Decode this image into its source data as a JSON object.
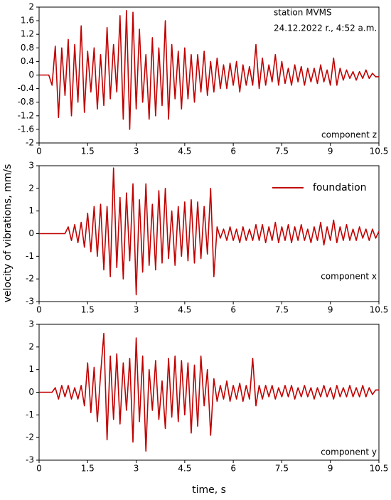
{
  "chart_data": [
    {
      "type": "line",
      "annotations": [
        "station MVMS",
        "24.12.2022 r., 4:52 a.m.",
        "component z"
      ],
      "x": [
        0,
        0.1,
        0.2,
        0.3,
        0.4,
        0.5,
        0.6,
        0.7,
        0.8,
        0.9,
        1,
        1.1,
        1.2,
        1.3,
        1.4,
        1.5,
        1.6,
        1.7,
        1.8,
        1.9,
        2,
        2.1,
        2.2,
        2.3,
        2.4,
        2.5,
        2.6,
        2.7,
        2.8,
        2.9,
        3,
        3.1,
        3.2,
        3.3,
        3.4,
        3.5,
        3.6,
        3.7,
        3.8,
        3.9,
        4,
        4.1,
        4.2,
        4.3,
        4.4,
        4.5,
        4.6,
        4.7,
        4.8,
        4.9,
        5,
        5.1,
        5.2,
        5.3,
        5.4,
        5.5,
        5.6,
        5.7,
        5.8,
        5.9,
        6,
        6.1,
        6.2,
        6.3,
        6.4,
        6.5,
        6.6,
        6.7,
        6.8,
        6.9,
        7,
        7.1,
        7.2,
        7.3,
        7.4,
        7.5,
        7.6,
        7.7,
        7.8,
        7.9,
        8,
        8.1,
        8.2,
        8.3,
        8.4,
        8.5,
        8.6,
        8.7,
        8.8,
        8.9,
        9,
        9.1,
        9.2,
        9.3,
        9.4,
        9.5,
        9.6,
        9.7,
        9.8,
        9.9,
        10,
        10.1,
        10.2,
        10.3,
        10.4,
        10.5
      ],
      "series": [
        {
          "color": "#c00000",
          "values": [
            0,
            0,
            0,
            0,
            -0.3,
            0.85,
            -1.25,
            0.8,
            -0.6,
            1.05,
            -1.2,
            0.9,
            -0.8,
            1.45,
            -1.1,
            0.7,
            -0.5,
            0.8,
            -1.0,
            0.6,
            -0.9,
            1.4,
            -0.7,
            0.9,
            -0.5,
            1.75,
            -1.3,
            1.9,
            -1.6,
            1.85,
            -1.0,
            1.35,
            -0.8,
            0.6,
            -1.3,
            1.1,
            -1.2,
            0.8,
            -0.9,
            1.6,
            -1.3,
            0.9,
            -0.7,
            0.7,
            -1.0,
            0.8,
            -0.7,
            0.6,
            -0.8,
            0.6,
            -0.5,
            0.7,
            -0.6,
            0.4,
            -0.5,
            0.5,
            -0.4,
            0.3,
            -0.4,
            0.35,
            -0.3,
            0.4,
            -0.5,
            0.3,
            -0.3,
            0.25,
            -0.3,
            0.9,
            -0.4,
            0.5,
            -0.3,
            0.3,
            -0.2,
            0.6,
            -0.3,
            0.4,
            -0.25,
            0.2,
            -0.3,
            0.3,
            -0.2,
            0.25,
            -0.3,
            0.2,
            -0.2,
            0.2,
            -0.25,
            0.3,
            -0.2,
            0.15,
            -0.3,
            0.5,
            -0.3,
            0.2,
            -0.15,
            0.15,
            -0.1,
            0.1,
            -0.15,
            0.1,
            -0.1,
            0.15,
            -0.1,
            0.05,
            -0.05,
            -0.05
          ]
        }
      ],
      "xlim": [
        0,
        10.5
      ],
      "xticks": [
        0,
        1.5,
        3,
        4.5,
        6,
        7.5,
        9,
        10.5
      ],
      "ylim": [
        -2,
        2
      ],
      "yticks": [
        2,
        1.6,
        1.2,
        0.8,
        0.4,
        0,
        -0.4,
        -0.8,
        -1.2,
        -1.6,
        -2
      ]
    },
    {
      "type": "line",
      "ylabel": "velocity of vibrations, mm/s",
      "annotations": [
        "component x"
      ],
      "x": [
        0,
        0.1,
        0.2,
        0.3,
        0.4,
        0.5,
        0.6,
        0.7,
        0.8,
        0.9,
        1,
        1.1,
        1.2,
        1.3,
        1.4,
        1.5,
        1.6,
        1.7,
        1.8,
        1.9,
        2,
        2.1,
        2.2,
        2.3,
        2.4,
        2.5,
        2.6,
        2.7,
        2.8,
        2.9,
        3,
        3.1,
        3.2,
        3.3,
        3.4,
        3.5,
        3.6,
        3.7,
        3.8,
        3.9,
        4,
        4.1,
        4.2,
        4.3,
        4.4,
        4.5,
        4.6,
        4.7,
        4.8,
        4.9,
        5,
        5.1,
        5.2,
        5.3,
        5.4,
        5.5,
        5.6,
        5.7,
        5.8,
        5.9,
        6,
        6.1,
        6.2,
        6.3,
        6.4,
        6.5,
        6.6,
        6.7,
        6.8,
        6.9,
        7,
        7.1,
        7.2,
        7.3,
        7.4,
        7.5,
        7.6,
        7.7,
        7.8,
        7.9,
        8,
        8.1,
        8.2,
        8.3,
        8.4,
        8.5,
        8.6,
        8.7,
        8.8,
        8.9,
        9,
        9.1,
        9.2,
        9.3,
        9.4,
        9.5,
        9.6,
        9.7,
        9.8,
        9.9,
        10,
        10.1,
        10.2,
        10.3,
        10.4,
        10.5
      ],
      "series": [
        {
          "name": "foundation",
          "color": "#c00000",
          "values": [
            0,
            0,
            0,
            0,
            0,
            0,
            0,
            0,
            0,
            0.3,
            -0.3,
            0.4,
            -0.4,
            0.5,
            -0.6,
            0.9,
            -0.8,
            1.2,
            -1.0,
            1.3,
            -1.6,
            1.2,
            -1.9,
            2.9,
            -1.5,
            1.6,
            -2.0,
            1.8,
            -1.2,
            2.2,
            -2.7,
            1.5,
            -1.7,
            2.2,
            -1.4,
            1.3,
            -1.6,
            1.9,
            -1.3,
            2.0,
            -1.1,
            1.0,
            -1.4,
            1.2,
            -1.0,
            1.4,
            -1.2,
            1.5,
            -1.3,
            1.4,
            -1.1,
            1.2,
            -0.9,
            2.0,
            -1.9,
            0.3,
            -0.2,
            0.2,
            -0.3,
            0.3,
            -0.3,
            0.2,
            -0.4,
            0.3,
            -0.3,
            0.2,
            -0.3,
            0.4,
            -0.3,
            0.4,
            -0.4,
            0.3,
            -0.3,
            0.5,
            -0.4,
            0.3,
            -0.3,
            0.4,
            -0.4,
            0.3,
            -0.3,
            0.4,
            -0.3,
            0.2,
            -0.4,
            0.3,
            -0.3,
            0.5,
            -0.5,
            0.3,
            -0.3,
            0.6,
            -0.4,
            0.3,
            -0.3,
            0.4,
            -0.3,
            0.2,
            -0.3,
            0.3,
            -0.2,
            0.2,
            -0.3,
            0.2,
            -0.2,
            0.1
          ]
        }
      ],
      "legend": "upper right",
      "xlim": [
        0,
        10.5
      ],
      "xticks": [
        0,
        1.5,
        3,
        4.5,
        6,
        7.5,
        9,
        10.5
      ],
      "ylim": [
        -3,
        3
      ],
      "yticks": [
        3,
        2,
        1,
        0,
        -1,
        -2,
        -3
      ]
    },
    {
      "type": "line",
      "xlabel": "time, s",
      "annotations": [
        "component y"
      ],
      "x": [
        0,
        0.1,
        0.2,
        0.3,
        0.4,
        0.5,
        0.6,
        0.7,
        0.8,
        0.9,
        1,
        1.1,
        1.2,
        1.3,
        1.4,
        1.5,
        1.6,
        1.7,
        1.8,
        1.9,
        2,
        2.1,
        2.2,
        2.3,
        2.4,
        2.5,
        2.6,
        2.7,
        2.8,
        2.9,
        3,
        3.1,
        3.2,
        3.3,
        3.4,
        3.5,
        3.6,
        3.7,
        3.8,
        3.9,
        4,
        4.1,
        4.2,
        4.3,
        4.4,
        4.5,
        4.6,
        4.7,
        4.8,
        4.9,
        5,
        5.1,
        5.2,
        5.3,
        5.4,
        5.5,
        5.6,
        5.7,
        5.8,
        5.9,
        6,
        6.1,
        6.2,
        6.3,
        6.4,
        6.5,
        6.6,
        6.7,
        6.8,
        6.9,
        7,
        7.1,
        7.2,
        7.3,
        7.4,
        7.5,
        7.6,
        7.7,
        7.8,
        7.9,
        8,
        8.1,
        8.2,
        8.3,
        8.4,
        8.5,
        8.6,
        8.7,
        8.8,
        8.9,
        9,
        9.1,
        9.2,
        9.3,
        9.4,
        9.5,
        9.6,
        9.7,
        9.8,
        9.9,
        10,
        10.1,
        10.2,
        10.3,
        10.4,
        10.5
      ],
      "series": [
        {
          "color": "#c00000",
          "values": [
            0,
            0,
            0,
            0,
            0,
            0.2,
            -0.3,
            0.3,
            -0.2,
            0.3,
            -0.3,
            0.2,
            -0.3,
            0.3,
            -0.6,
            1.3,
            -0.9,
            1.1,
            -1.3,
            0.8,
            2.6,
            -2.1,
            1.6,
            -1.2,
            1.7,
            -1.4,
            1.3,
            -0.8,
            1.5,
            -2.2,
            2.4,
            -1.3,
            1.6,
            -2.6,
            1.0,
            -0.8,
            1.4,
            -1.2,
            0.5,
            -1.6,
            1.5,
            -1.1,
            1.6,
            -1.3,
            1.4,
            -1.0,
            1.3,
            -1.8,
            1.2,
            -1.5,
            1.6,
            -0.6,
            1.0,
            -1.9,
            0.6,
            -0.4,
            0.3,
            -0.3,
            0.5,
            -0.4,
            0.3,
            -0.3,
            0.4,
            -0.4,
            0.3,
            -0.3,
            1.5,
            -0.6,
            0.3,
            -0.3,
            0.3,
            -0.2,
            0.3,
            -0.3,
            0.2,
            -0.2,
            0.3,
            -0.2,
            0.3,
            -0.3,
            0.2,
            -0.2,
            0.3,
            -0.2,
            0.2,
            -0.3,
            0.2,
            -0.2,
            0.3,
            -0.2,
            0.2,
            -0.3,
            0.3,
            -0.2,
            0.2,
            -0.2,
            0.3,
            -0.2,
            0.2,
            -0.2,
            0.3,
            -0.2,
            0.2,
            -0.1,
            0.1,
            0.1
          ]
        }
      ],
      "xlim": [
        0,
        10.5
      ],
      "xticks": [
        0,
        1.5,
        3,
        4.5,
        6,
        7.5,
        9,
        10.5
      ],
      "ylim": [
        -3,
        3
      ],
      "yticks": [
        3,
        2,
        1,
        0,
        -1,
        -2,
        -3
      ]
    }
  ]
}
